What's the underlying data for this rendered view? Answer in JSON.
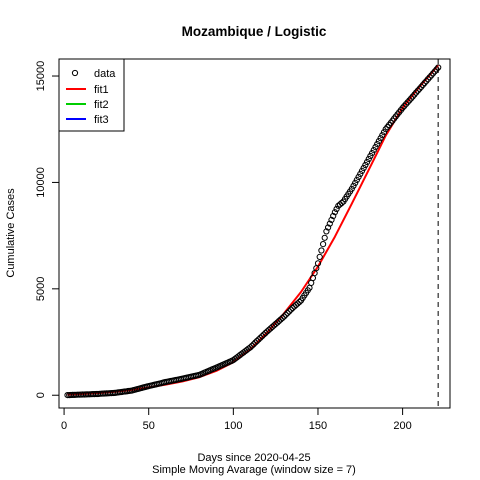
{
  "chart_data": {
    "type": "line",
    "title": "Mozambique / Logistic",
    "xlabel": "Days since 2020-04-25",
    "subtitle": "Simple Moving Avarage (window size = 7)",
    "ylabel": "Cumulative Cases",
    "xlim": [
      -3,
      228
    ],
    "ylim": [
      -600,
      15800
    ],
    "x_ticks": [
      0,
      50,
      100,
      150,
      200
    ],
    "y_ticks": [
      0,
      5000,
      10000,
      15000
    ],
    "x_tick_labels": [
      "0",
      "50",
      "100",
      "150",
      "200"
    ],
    "y_tick_labels": [
      "0",
      "5000",
      "10000",
      "15000"
    ],
    "vline_x": 221,
    "legend": {
      "position": "top-left",
      "entries": [
        "data",
        "fit1",
        "fit2",
        "fit3"
      ]
    },
    "series": [
      {
        "name": "data",
        "style": "points",
        "color": "#000000",
        "x": [
          2,
          10,
          20,
          30,
          40,
          50,
          60,
          70,
          80,
          90,
          100,
          110,
          120,
          130,
          135,
          140,
          145,
          150,
          155,
          160,
          162,
          165,
          170,
          180,
          190,
          200,
          210,
          221
        ],
        "y": [
          5,
          30,
          60,
          110,
          220,
          430,
          620,
          780,
          960,
          1300,
          1650,
          2250,
          3000,
          3700,
          4100,
          4450,
          5050,
          6200,
          7700,
          8600,
          8900,
          9100,
          9700,
          11100,
          12500,
          13500,
          14400,
          15400
        ]
      },
      {
        "name": "fit1",
        "style": "line",
        "color": "#ff0000",
        "x": [
          2,
          10,
          20,
          30,
          40,
          50,
          60,
          70,
          80,
          90,
          100,
          110,
          120,
          130,
          140,
          150,
          160,
          170,
          180,
          190,
          200,
          210,
          221
        ],
        "y": [
          30,
          60,
          100,
          160,
          250,
          370,
          500,
          650,
          850,
          1150,
          1550,
          2150,
          2950,
          3850,
          4850,
          6050,
          7450,
          9000,
          10600,
          12200,
          13500,
          14500,
          15500
        ]
      },
      {
        "name": "fit2",
        "style": "line",
        "color": "#00cd00",
        "x": [],
        "y": []
      },
      {
        "name": "fit3",
        "style": "line",
        "color": "#0000ff",
        "x": [],
        "y": []
      }
    ]
  }
}
